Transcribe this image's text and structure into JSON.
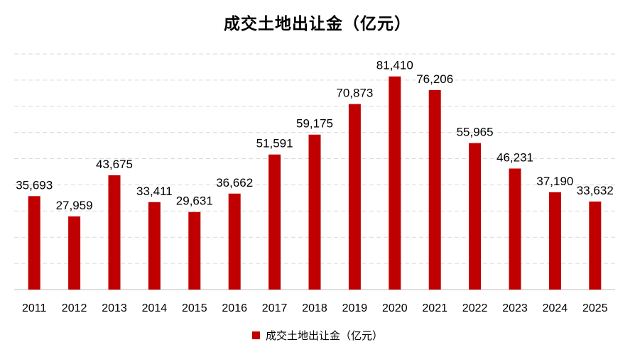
{
  "chart_data": {
    "type": "bar",
    "title": "成交土地出让金（亿元）",
    "categories": [
      "2011",
      "2012",
      "2013",
      "2014",
      "2015",
      "2016",
      "2017",
      "2018",
      "2019",
      "2020",
      "2021",
      "2022",
      "2023",
      "2024",
      "2025"
    ],
    "series": [
      {
        "name": "成交土地出让金（亿元）",
        "values": [
          35693,
          27959,
          43675,
          33411,
          29631,
          36662,
          51591,
          59175,
          70873,
          81410,
          76206,
          55965,
          46231,
          37190,
          33632
        ],
        "labels": [
          "35,693",
          "27,959",
          "43,675",
          "33,411",
          "29,631",
          "36,662",
          "51,591",
          "59,175",
          "70,873",
          "81,410",
          "76,206",
          "55,965",
          "46,231",
          "37,190",
          "33,632"
        ],
        "color": "#c00000"
      }
    ],
    "ylim": [
      0,
      90000
    ],
    "grid": true,
    "legend_position": "bottom",
    "xlabel": "",
    "ylabel": ""
  }
}
